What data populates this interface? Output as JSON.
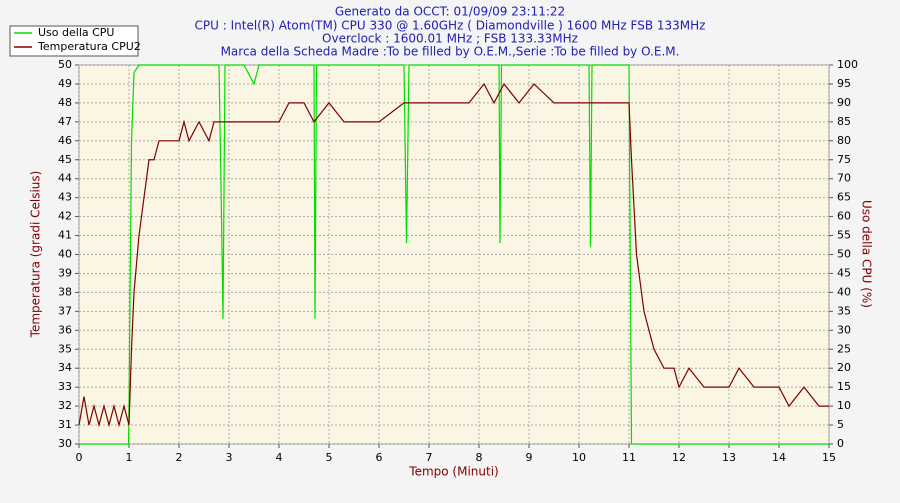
{
  "chart_data": {
    "type": "line",
    "title": [
      "Generato da OCCT: 01/09/09 23:11:22",
      "CPU : Intel(R) Atom(TM) CPU 330 @ 1.60GHz ( Diamondville ) 1600 MHz FSB 133MHz",
      "Overclock : 1600.01 MHz ; FSB 133.33MHz",
      "Marca della Scheda Madre :To be filled by O.E.M.,Serie :To be filled by O.E.M."
    ],
    "xlabel": "Tempo (Minuti)",
    "ylabel": "Temperatura (gradi Celsius)",
    "y2label": "Uso della CPU (%)",
    "xlim": [
      0,
      15
    ],
    "xticks": [
      0,
      1,
      2,
      3,
      4,
      5,
      6,
      7,
      8,
      9,
      10,
      11,
      12,
      13,
      14,
      15
    ],
    "ylim": [
      30,
      50
    ],
    "yticks": [
      30,
      31,
      32,
      33,
      34,
      35,
      36,
      37,
      38,
      39,
      40,
      41,
      42,
      43,
      44,
      45,
      46,
      47,
      48,
      49,
      50
    ],
    "y2lim": [
      0,
      100
    ],
    "y2ticks": [
      0,
      5,
      10,
      15,
      20,
      25,
      30,
      35,
      40,
      45,
      50,
      55,
      60,
      65,
      70,
      75,
      80,
      85,
      90,
      95,
      100
    ],
    "grid": true,
    "series": [
      {
        "name": "Uso della CPU",
        "color": "#00dd00",
        "axis": "y2",
        "x": [
          0,
          0.99,
          1.0,
          1.05,
          1.1,
          1.2,
          2.8,
          2.85,
          2.88,
          2.92,
          3.3,
          3.5,
          3.6,
          4.7,
          4.72,
          4.75,
          6.5,
          6.55,
          6.6,
          8.4,
          8.42,
          8.45,
          10.2,
          10.23,
          10.26,
          11.0,
          11.05,
          15
        ],
        "values": [
          0,
          0,
          10,
          80,
          98,
          100,
          100,
          60,
          33,
          100,
          100,
          95,
          100,
          100,
          33,
          100,
          100,
          53,
          100,
          100,
          53,
          100,
          100,
          52,
          100,
          100,
          0,
          0
        ]
      },
      {
        "name": "Temperatura CPU2",
        "color": "#800000",
        "x": [
          0,
          0.1,
          0.2,
          0.3,
          0.4,
          0.5,
          0.6,
          0.7,
          0.8,
          0.9,
          1.0,
          1.05,
          1.1,
          1.2,
          1.3,
          1.4,
          1.5,
          1.6,
          1.7,
          2.0,
          2.1,
          2.2,
          2.4,
          2.6,
          2.7,
          3.0,
          3.5,
          4.0,
          4.2,
          4.5,
          4.7,
          5.0,
          5.3,
          6.0,
          6.5,
          7.0,
          7.5,
          7.8,
          8.1,
          8.3,
          8.5,
          8.8,
          9.1,
          9.5,
          10.0,
          10.5,
          11.0,
          11.05,
          11.15,
          11.3,
          11.5,
          11.7,
          11.9,
          12.0,
          12.2,
          12.5,
          13.0,
          13.2,
          13.5,
          13.8,
          14.0,
          14.2,
          14.5,
          14.8,
          15.0
        ],
        "values": [
          31,
          32.5,
          31,
          32,
          31,
          32,
          31,
          32,
          31,
          32,
          31,
          35,
          38,
          41,
          43,
          45,
          45,
          46,
          46,
          46,
          47,
          46,
          47,
          46,
          47,
          47,
          47,
          47,
          48,
          48,
          47,
          48,
          47,
          47,
          48,
          48,
          48,
          48,
          49,
          48,
          49,
          48,
          49,
          48,
          48,
          48,
          48,
          45,
          40,
          37,
          35,
          34,
          34,
          33,
          34,
          33,
          33,
          34,
          33,
          33,
          33,
          32,
          33,
          32,
          32
        ]
      }
    ]
  }
}
